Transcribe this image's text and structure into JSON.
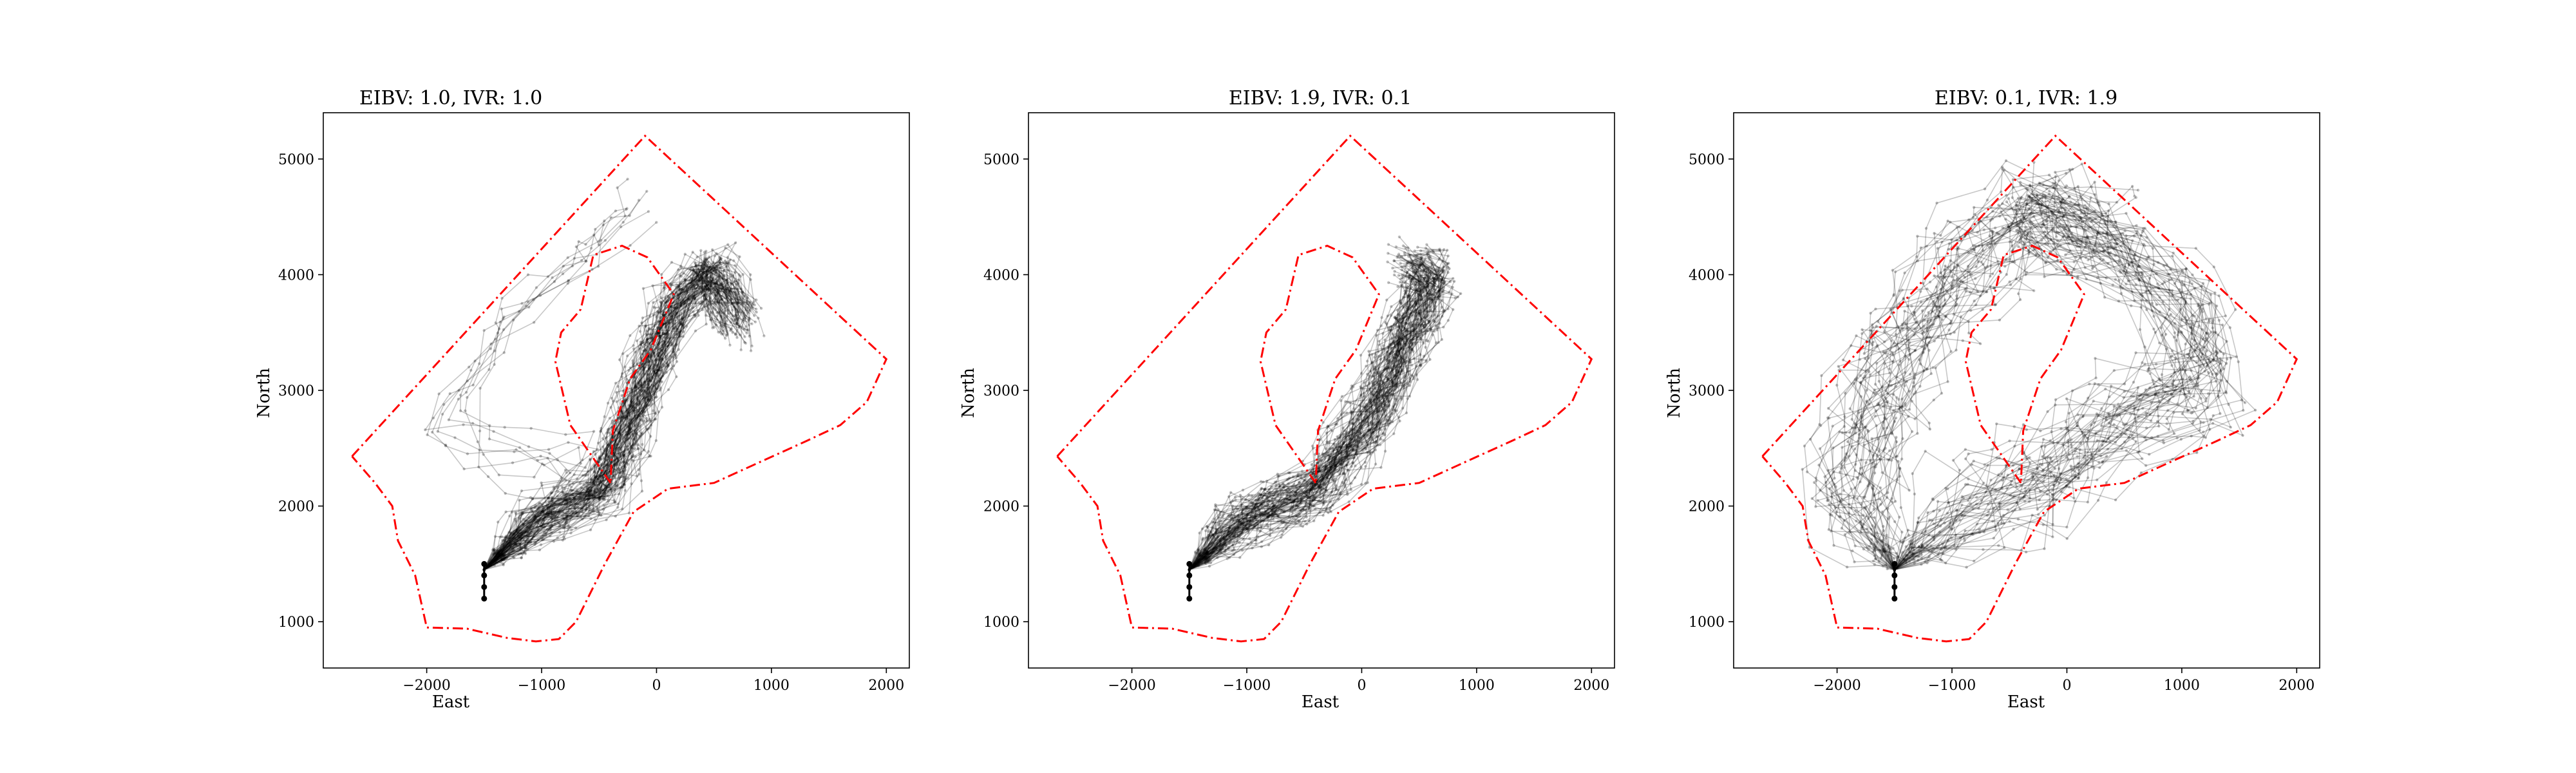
{
  "chart_data": [
    {
      "type": "line",
      "title": "EIBV: 1.0, IVR: 1.0",
      "xlabel": "East",
      "ylabel": "North",
      "xlim": [
        -2900,
        2200
      ],
      "ylim": [
        600,
        5400
      ],
      "xticks": [
        -2000,
        -1000,
        0,
        1000,
        2000
      ],
      "xtick_labels": [
        "−2000",
        "−1000",
        "0",
        "1000",
        "2000"
      ],
      "yticks": [
        1000,
        2000,
        3000,
        4000,
        5000
      ],
      "ytick_labels": [
        "1000",
        "2000",
        "3000",
        "4000",
        "5000"
      ],
      "grid": false,
      "series": [
        {
          "role": "boundary",
          "color": "#ff0000",
          "style": "dashdot",
          "points": [
            [
              -2650,
              2430
            ],
            [
              -100,
              5200
            ],
            [
              2000,
              3270
            ],
            [
              1830,
              2900
            ],
            [
              1600,
              2700
            ],
            [
              1300,
              2560
            ],
            [
              900,
              2380
            ],
            [
              500,
              2200
            ],
            [
              100,
              2150
            ],
            [
              -200,
              1950
            ],
            [
              -450,
              1500
            ],
            [
              -700,
              1000
            ],
            [
              -850,
              850
            ],
            [
              -1050,
              830
            ],
            [
              -1300,
              860
            ],
            [
              -1650,
              940
            ],
            [
              -2000,
              950
            ],
            [
              -2100,
              1400
            ],
            [
              -2250,
              1700
            ],
            [
              -2300,
              2000
            ],
            [
              -2450,
              2200
            ],
            [
              -2650,
              2430
            ]
          ]
        },
        {
          "role": "boundary",
          "color": "#ff0000",
          "style": "dashdot",
          "points": [
            [
              -400,
              2200
            ],
            [
              -750,
              2700
            ],
            [
              -880,
              3250
            ],
            [
              -830,
              3500
            ],
            [
              -660,
              3700
            ],
            [
              -550,
              4170
            ],
            [
              -300,
              4250
            ],
            [
              -80,
              4150
            ],
            [
              150,
              3830
            ],
            [
              -50,
              3350
            ],
            [
              -230,
              3100
            ],
            [
              -380,
              2650
            ],
            [
              -400,
              2200
            ]
          ]
        },
        {
          "role": "paths",
          "color": "#000000",
          "label_note": "bundle",
          "focus": [
            [
              -1500,
              1450
            ],
            [
              -1100,
              1800
            ],
            [
              -450,
              2150
            ],
            [
              -150,
              3000
            ],
            [
              200,
              3750
            ],
            [
              500,
              4050
            ],
            [
              700,
              3600
            ]
          ],
          "spread": 180,
          "count": 90
        },
        {
          "role": "paths",
          "color": "#000000",
          "label_note": "branch",
          "focus": [
            [
              -1500,
              1450
            ],
            [
              -1000,
              1900
            ],
            [
              -700,
              2300
            ],
            [
              -1500,
              2500
            ],
            [
              -1800,
              2900
            ],
            [
              -1200,
              3700
            ],
            [
              -600,
              4200
            ],
            [
              -200,
              4600
            ]
          ],
          "spread": 220,
          "count": 8
        },
        {
          "role": "start",
          "color": "#000000",
          "points": [
            [
              -1500,
              1200
            ],
            [
              -1500,
              1300
            ],
            [
              -1500,
              1400
            ],
            [
              -1500,
              1500
            ]
          ]
        }
      ]
    },
    {
      "type": "line",
      "title": "EIBV: 1.9, IVR: 0.1",
      "xlabel": "East",
      "ylabel": "North",
      "xlim": [
        -2900,
        2200
      ],
      "ylim": [
        600,
        5400
      ],
      "xticks": [
        -2000,
        -1000,
        0,
        1000,
        2000
      ],
      "xtick_labels": [
        "−2000",
        "−1000",
        "0",
        "1000",
        "2000"
      ],
      "yticks": [
        1000,
        2000,
        3000,
        4000,
        5000
      ],
      "ytick_labels": [
        "1000",
        "2000",
        "3000",
        "4000",
        "5000"
      ],
      "grid": false,
      "series": [
        {
          "role": "boundary",
          "color": "#ff0000",
          "style": "dashdot",
          "points": [
            [
              -2650,
              2430
            ],
            [
              -100,
              5200
            ],
            [
              2000,
              3270
            ],
            [
              1830,
              2900
            ],
            [
              1600,
              2700
            ],
            [
              1300,
              2560
            ],
            [
              900,
              2380
            ],
            [
              500,
              2200
            ],
            [
              100,
              2150
            ],
            [
              -200,
              1950
            ],
            [
              -450,
              1500
            ],
            [
              -700,
              1000
            ],
            [
              -850,
              850
            ],
            [
              -1050,
              830
            ],
            [
              -1300,
              860
            ],
            [
              -1650,
              940
            ],
            [
              -2000,
              950
            ],
            [
              -2100,
              1400
            ],
            [
              -2250,
              1700
            ],
            [
              -2300,
              2000
            ],
            [
              -2450,
              2200
            ],
            [
              -2650,
              2430
            ]
          ]
        },
        {
          "role": "boundary",
          "color": "#ff0000",
          "style": "dashdot",
          "points": [
            [
              -400,
              2200
            ],
            [
              -750,
              2700
            ],
            [
              -880,
              3250
            ],
            [
              -830,
              3500
            ],
            [
              -660,
              3700
            ],
            [
              -550,
              4170
            ],
            [
              -300,
              4250
            ],
            [
              -80,
              4150
            ],
            [
              150,
              3830
            ],
            [
              -50,
              3350
            ],
            [
              -230,
              3100
            ],
            [
              -380,
              2650
            ],
            [
              -400,
              2200
            ]
          ]
        },
        {
          "role": "paths",
          "color": "#000000",
          "label_note": "bundle",
          "focus": [
            [
              -1500,
              1450
            ],
            [
              -1000,
              1900
            ],
            [
              -400,
              2150
            ],
            [
              100,
              2800
            ],
            [
              400,
              3500
            ],
            [
              650,
              4000
            ],
            [
              450,
              4100
            ]
          ],
          "spread": 170,
          "count": 90
        },
        {
          "role": "start",
          "color": "#000000",
          "points": [
            [
              -1500,
              1200
            ],
            [
              -1500,
              1300
            ],
            [
              -1500,
              1400
            ],
            [
              -1500,
              1500
            ]
          ]
        }
      ]
    },
    {
      "type": "line",
      "title": "EIBV: 0.1, IVR: 1.9",
      "xlabel": "East",
      "ylabel": "North",
      "xlim": [
        -2900,
        2200
      ],
      "ylim": [
        600,
        5400
      ],
      "xticks": [
        -2000,
        -1000,
        0,
        1000,
        2000
      ],
      "xtick_labels": [
        "−2000",
        "−1000",
        "0",
        "1000",
        "2000"
      ],
      "yticks": [
        1000,
        2000,
        3000,
        4000,
        5000
      ],
      "ytick_labels": [
        "1000",
        "2000",
        "3000",
        "4000",
        "5000"
      ],
      "grid": false,
      "series": [
        {
          "role": "boundary",
          "color": "#ff0000",
          "style": "dashdot",
          "points": [
            [
              -2650,
              2430
            ],
            [
              -100,
              5200
            ],
            [
              2000,
              3270
            ],
            [
              1830,
              2900
            ],
            [
              1600,
              2700
            ],
            [
              1300,
              2560
            ],
            [
              900,
              2380
            ],
            [
              500,
              2200
            ],
            [
              100,
              2150
            ],
            [
              -200,
              1950
            ],
            [
              -450,
              1500
            ],
            [
              -700,
              1000
            ],
            [
              -850,
              850
            ],
            [
              -1050,
              830
            ],
            [
              -1300,
              860
            ],
            [
              -1650,
              940
            ],
            [
              -2000,
              950
            ],
            [
              -2100,
              1400
            ],
            [
              -2250,
              1700
            ],
            [
              -2300,
              2000
            ],
            [
              -2450,
              2200
            ],
            [
              -2650,
              2430
            ]
          ]
        },
        {
          "role": "boundary",
          "color": "#ff0000",
          "style": "dashdot",
          "points": [
            [
              -400,
              2200
            ],
            [
              -750,
              2700
            ],
            [
              -880,
              3250
            ],
            [
              -830,
              3500
            ],
            [
              -660,
              3700
            ],
            [
              -550,
              4170
            ],
            [
              -300,
              4250
            ],
            [
              -80,
              4150
            ],
            [
              150,
              3830
            ],
            [
              -50,
              3350
            ],
            [
              -230,
              3100
            ],
            [
              -380,
              2650
            ],
            [
              -400,
              2200
            ]
          ]
        },
        {
          "role": "paths",
          "color": "#000000",
          "label_note": "east loop",
          "focus": [
            [
              -1500,
              1450
            ],
            [
              -900,
              2000
            ],
            [
              -300,
              2200
            ],
            [
              400,
              2600
            ],
            [
              1200,
              3100
            ],
            [
              900,
              3900
            ],
            [
              200,
              4300
            ],
            [
              -200,
              4500
            ]
          ],
          "spread": 330,
          "count": 45
        },
        {
          "role": "paths",
          "color": "#000000",
          "label_note": "west loop",
          "focus": [
            [
              -1500,
              1450
            ],
            [
              -1900,
              2100
            ],
            [
              -1700,
              2800
            ],
            [
              -1300,
              3500
            ],
            [
              -900,
              4100
            ],
            [
              -300,
              4600
            ],
            [
              300,
              4300
            ]
          ],
          "spread": 330,
          "count": 40
        },
        {
          "role": "start",
          "color": "#000000",
          "points": [
            [
              -1500,
              1200
            ],
            [
              -1500,
              1300
            ],
            [
              -1500,
              1400
            ],
            [
              -1500,
              1500
            ]
          ]
        }
      ]
    }
  ]
}
